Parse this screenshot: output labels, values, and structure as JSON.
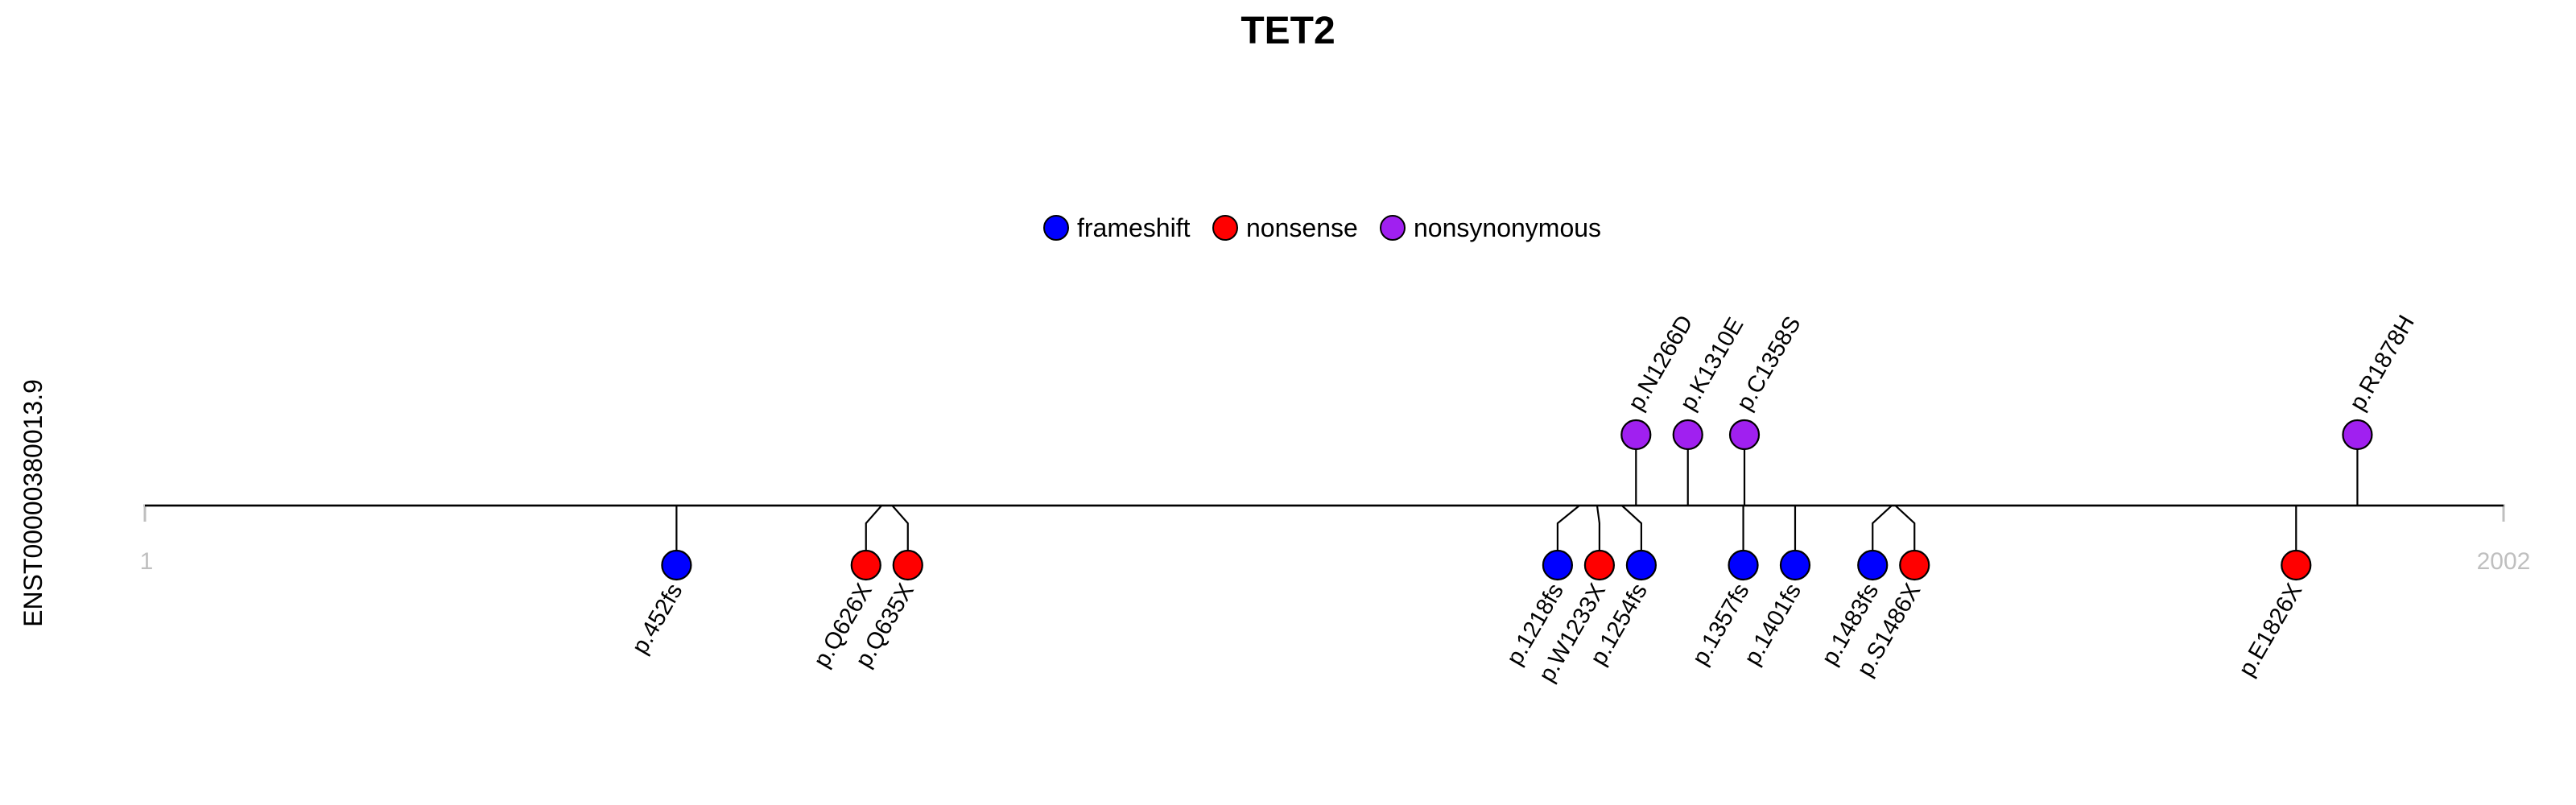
{
  "chart_data": {
    "type": "lollipop",
    "title": "TET2",
    "ylabel": "ENST00000380013.9",
    "xlim": [
      1,
      2002
    ],
    "ticks": [
      "1",
      "2002"
    ],
    "legend": {
      "placement": "top-center",
      "items": [
        {
          "name": "frameshift",
          "color": "#0000ff"
        },
        {
          "name": "nonsense",
          "color": "#ff0000"
        },
        {
          "name": "nonsynonymous",
          "color": "#a020f0"
        }
      ]
    },
    "mutations": [
      {
        "label": "p.452fs",
        "position": 452,
        "type": "frameshift",
        "side": "below",
        "count": 1
      },
      {
        "label": "p.Q626X",
        "position": 626,
        "type": "nonsense",
        "side": "below",
        "count": 1
      },
      {
        "label": "p.Q635X",
        "position": 635,
        "type": "nonsense",
        "side": "below",
        "count": 1
      },
      {
        "label": "p.1218fs",
        "position": 1218,
        "type": "frameshift",
        "side": "below",
        "count": 1
      },
      {
        "label": "p.W1233X",
        "position": 1233,
        "type": "nonsense",
        "side": "below",
        "count": 1
      },
      {
        "label": "p.1254fs",
        "position": 1254,
        "type": "frameshift",
        "side": "below",
        "count": 1
      },
      {
        "label": "p.N1266D",
        "position": 1266,
        "type": "nonsynonymous",
        "side": "above",
        "count": 1
      },
      {
        "label": "p.K1310E",
        "position": 1310,
        "type": "nonsynonymous",
        "side": "above",
        "count": 1
      },
      {
        "label": "p.C1358S",
        "position": 1358,
        "type": "nonsynonymous",
        "side": "above",
        "count": 1
      },
      {
        "label": "p.1357fs",
        "position": 1357,
        "type": "frameshift",
        "side": "below",
        "count": 1
      },
      {
        "label": "p.1401fs",
        "position": 1401,
        "type": "frameshift",
        "side": "below",
        "count": 1
      },
      {
        "label": "p.1483fs",
        "position": 1483,
        "type": "frameshift",
        "side": "below",
        "count": 1
      },
      {
        "label": "p.S1486X",
        "position": 1486,
        "type": "nonsense",
        "side": "below",
        "count": 1
      },
      {
        "label": "p.E1826X",
        "position": 1826,
        "type": "nonsense",
        "side": "below",
        "count": 1
      },
      {
        "label": "p.R1878H",
        "position": 1878,
        "type": "nonsynonymous",
        "side": "above",
        "count": 1
      }
    ]
  }
}
